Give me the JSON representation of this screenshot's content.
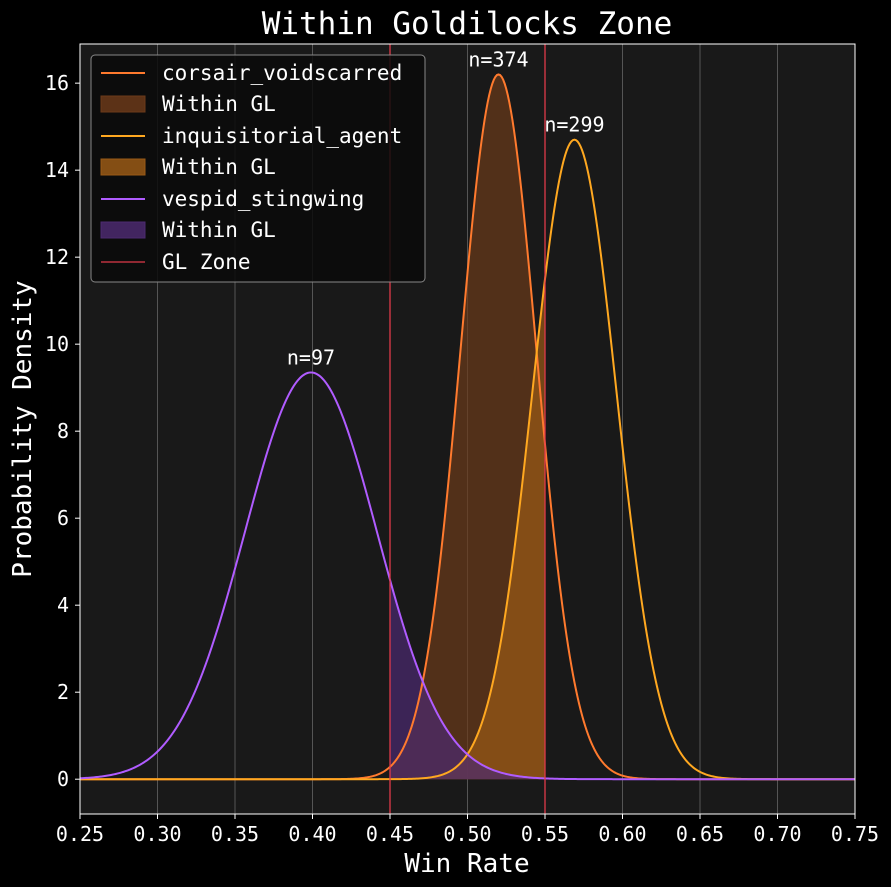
{
  "chart_data": {
    "type": "area",
    "title": "Within Goldilocks Zone",
    "xlabel": "Win Rate",
    "ylabel": "Probability Density",
    "xlim": [
      0.25,
      0.75
    ],
    "ylim": [
      -0.8,
      16.9
    ],
    "x_ticks": [
      0.25,
      0.3,
      0.35,
      0.4,
      0.45,
      0.5,
      0.55,
      0.6,
      0.65,
      0.7,
      0.75
    ],
    "x_tick_labels": [
      "0.25",
      "0.30",
      "0.35",
      "0.40",
      "0.45",
      "0.50",
      "0.55",
      "0.60",
      "0.65",
      "0.70",
      "0.75"
    ],
    "y_ticks": [
      0,
      2,
      4,
      6,
      8,
      10,
      12,
      14,
      16
    ],
    "y_tick_labels": [
      "0",
      "2",
      "4",
      "6",
      "8",
      "10",
      "12",
      "14",
      "16"
    ],
    "grid": "vertical",
    "legend_position": "top-left",
    "background_color": "#000000",
    "plot_background_color": "#191919",
    "gl_zone": {
      "label": "GL Zone",
      "range": [
        0.45,
        0.55
      ],
      "color": "#e03a4a"
    },
    "series": [
      {
        "name": "corsair_voidscarred",
        "fill_label": "Within GL",
        "mean": 0.52,
        "sd": 0.0246,
        "peak": 16.2,
        "n_label": "n=374",
        "color": "#ff7a2e",
        "fill_color": "#6b3a1a"
      },
      {
        "name": "inquisitorial_agent",
        "fill_label": "Within GL",
        "mean": 0.569,
        "sd": 0.0271,
        "peak": 14.7,
        "n_label": "n=299",
        "color": "#ffa820",
        "fill_color": "#9a5a16"
      },
      {
        "name": "vespid_stingwing",
        "fill_label": "Within GL",
        "mean": 0.399,
        "sd": 0.0427,
        "peak": 9.35,
        "n_label": "n=97",
        "color": "#b05cff",
        "fill_color": "#4c2a70"
      }
    ]
  }
}
